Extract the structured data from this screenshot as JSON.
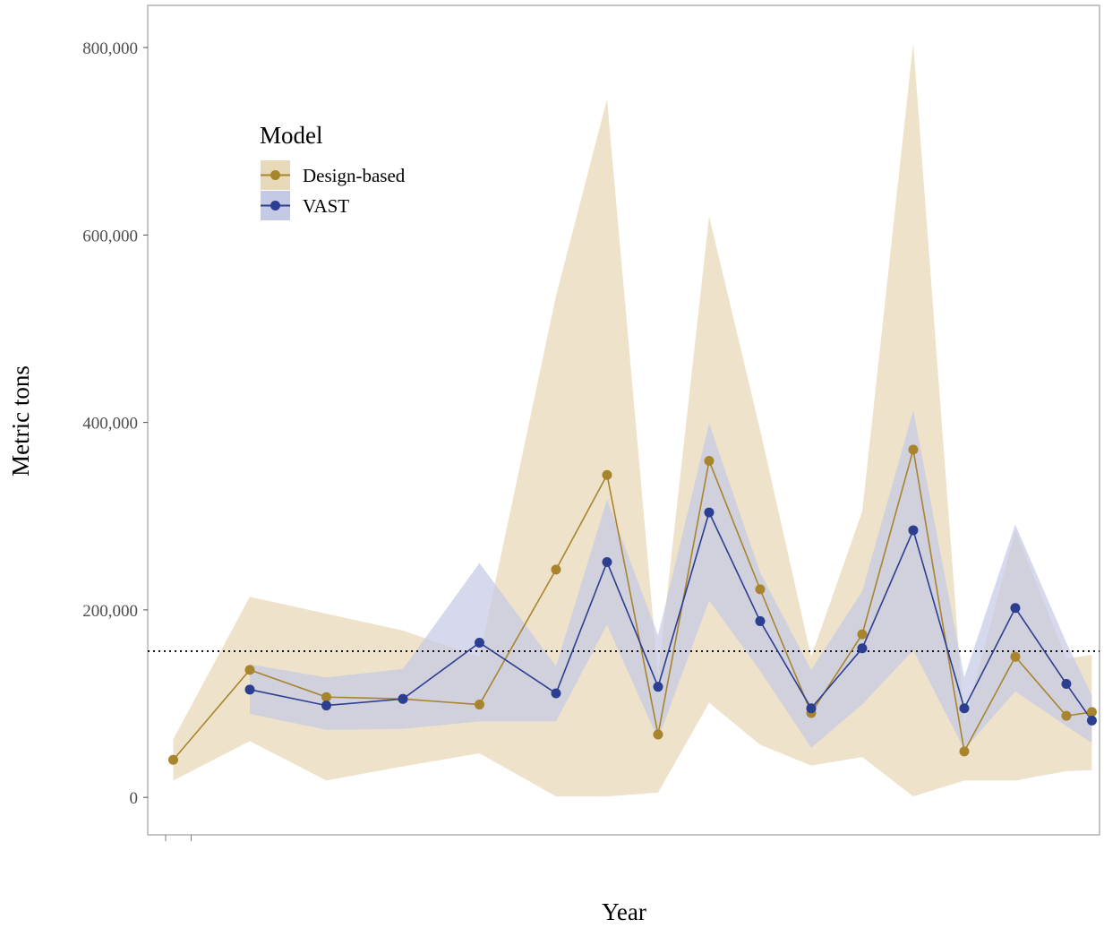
{
  "chart_data": {
    "type": "line",
    "title": "",
    "xlabel": "Year",
    "ylabel": "Metric tons",
    "ylim": [
      -40000,
      845000
    ],
    "y_ticks": [
      0,
      200000,
      400000,
      600000,
      800000
    ],
    "y_tick_labels": [
      "0",
      "200,000",
      "400,000",
      "600,000",
      "800,000"
    ],
    "x_tick_labels": [],
    "x_domain": [
      -0.5,
      18.15
    ],
    "grid": false,
    "legend": {
      "title": "Model",
      "position": "top-left inside"
    },
    "reference_line": {
      "y": 156000,
      "style": "dotted"
    },
    "series": [
      {
        "name": "Design-based",
        "color": "#a8842d",
        "band_color": "#e8d9b8",
        "x": [
          0,
          1.5,
          3,
          4.5,
          6,
          7.5,
          8.5,
          9.5,
          10.5,
          11.5,
          12.5,
          13.5,
          14.5,
          15.5,
          16.5,
          17.5,
          18
        ],
        "values": [
          40000,
          136000,
          107000,
          105000,
          99000,
          243000,
          344000,
          67000,
          359000,
          222000,
          90000,
          174000,
          371000,
          49000,
          150000,
          87000,
          91000
        ],
        "lower": [
          18000,
          60000,
          18000,
          33000,
          47000,
          1000,
          1000,
          5000,
          101000,
          56000,
          34000,
          43000,
          1000,
          18000,
          18000,
          28000,
          29000
        ],
        "upper": [
          62000,
          214000,
          196000,
          178000,
          150000,
          535000,
          745000,
          130000,
          620000,
          392000,
          150000,
          305000,
          805000,
          79000,
          285000,
          148000,
          152000
        ]
      },
      {
        "name": "VAST",
        "color": "#2b3e8f",
        "band_color": "#c4c9e6",
        "x": [
          1.5,
          3,
          4.5,
          6,
          7.5,
          8.5,
          9.5,
          10.5,
          11.5,
          12.5,
          13.5,
          14.5,
          15.5,
          16.5,
          17.5,
          18
        ],
        "values": [
          115000,
          98000,
          105000,
          165000,
          111000,
          251000,
          118000,
          304000,
          188000,
          95000,
          159000,
          285000,
          95000,
          202000,
          121000,
          82000
        ],
        "lower": [
          89000,
          72000,
          73000,
          81000,
          81000,
          184000,
          62000,
          210000,
          135000,
          53000,
          99000,
          157000,
          51000,
          113000,
          76000,
          58000
        ],
        "upper": [
          142000,
          128000,
          137000,
          250000,
          140000,
          318000,
          173000,
          399000,
          240000,
          136000,
          220000,
          413000,
          128000,
          291000,
          165000,
          109000
        ]
      }
    ]
  }
}
